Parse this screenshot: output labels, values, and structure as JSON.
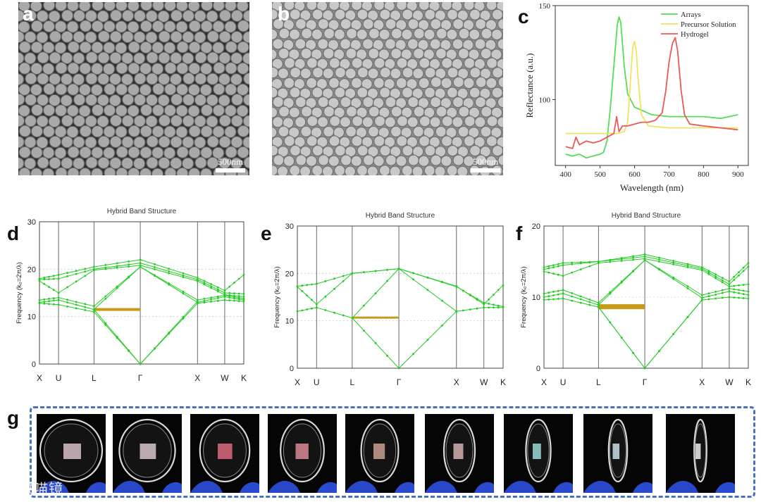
{
  "panels": {
    "a": {
      "letter": "a",
      "scale": "500nm"
    },
    "b": {
      "letter": "b",
      "scale": "500nm"
    },
    "c": {
      "letter": "c"
    },
    "d": {
      "letter": "d"
    },
    "e": {
      "letter": "e"
    },
    "f": {
      "letter": "f"
    },
    "g": {
      "letter": "g"
    }
  },
  "watermark": "大数喵镜",
  "colors": {
    "band": "#22cc22",
    "gap": "#c89a1a",
    "arrays": "#55dd55",
    "precursor": "#f5e060",
    "hydrogel": "#e85a5a",
    "frame": "#4a72b8"
  },
  "chart_data": [
    {
      "type": "line",
      "id": "c",
      "xlabel": "Wavelength (nm)",
      "ylabel": "Reflectance (a.u.)",
      "xlim": [
        370,
        930
      ],
      "ylim": [
        65,
        150
      ],
      "xticks": [
        400,
        500,
        600,
        700,
        800,
        900
      ],
      "yticks": [
        100,
        150
      ],
      "legend_position": "top-right",
      "series": [
        {
          "name": "Arrays",
          "color": "#55dd55",
          "x": [
            400,
            420,
            440,
            460,
            480,
            500,
            510,
            520,
            530,
            540,
            550,
            555,
            560,
            570,
            580,
            600,
            650,
            700,
            750,
            800,
            850,
            900
          ],
          "y": [
            71,
            70,
            71,
            69,
            70,
            71,
            72,
            78,
            96,
            118,
            140,
            144,
            141,
            118,
            103,
            96,
            92,
            91,
            91,
            91,
            90,
            92
          ]
        },
        {
          "name": "Precursor Solution",
          "color": "#f5e060",
          "x": [
            400,
            450,
            500,
            550,
            570,
            580,
            590,
            595,
            600,
            605,
            610,
            620,
            640,
            700,
            800,
            900
          ],
          "y": [
            82,
            82,
            82,
            82,
            83,
            88,
            115,
            128,
            131,
            126,
            112,
            92,
            86,
            85,
            85,
            85
          ]
        },
        {
          "name": "Hydrogel",
          "color": "#e85a5a",
          "x": [
            400,
            420,
            430,
            440,
            460,
            480,
            500,
            520,
            540,
            548,
            555,
            565,
            580,
            600,
            620,
            640,
            660,
            680,
            690,
            700,
            710,
            718,
            725,
            735,
            745,
            760,
            800,
            850,
            900
          ],
          "y": [
            75,
            74,
            80,
            76,
            78,
            77,
            78,
            80,
            82,
            91,
            83,
            86,
            86,
            87,
            88,
            88,
            89,
            93,
            104,
            120,
            130,
            133,
            126,
            105,
            92,
            87,
            86,
            85,
            84
          ]
        }
      ]
    },
    {
      "type": "line",
      "id": "d",
      "title": "Hybrid Band Structure",
      "ylabel": "Frequency (k₀=2π/λ)",
      "ylim": [
        0,
        30
      ],
      "yticks": [
        0,
        10,
        20,
        30
      ],
      "kpoints": [
        {
          "label": "X",
          "pos": 0
        },
        {
          "label": "U",
          "pos": 0.35
        },
        {
          "label": "L",
          "pos": 1.0
        },
        {
          "label": "Γ",
          "pos": 1.85
        },
        {
          "label": "X",
          "pos": 2.9
        },
        {
          "label": "W",
          "pos": 3.4
        },
        {
          "label": "K",
          "pos": 3.75
        }
      ],
      "gap": [
        11.2,
        11.8
      ],
      "series": [
        {
          "x": [
            0,
            0.35,
            1.0,
            1.85,
            2.9,
            3.4,
            3.75
          ],
          "y": [
            18.0,
            18.8,
            20.5,
            22.0,
            18.2,
            15.5,
            18.8
          ]
        },
        {
          "x": [
            0,
            0.35,
            1.0,
            1.85,
            2.9,
            3.4,
            3.75
          ],
          "y": [
            17.8,
            18.0,
            20.0,
            21.3,
            17.8,
            15.0,
            14.8
          ]
        },
        {
          "x": [
            0,
            0.35,
            1.0,
            1.85,
            2.9,
            3.4,
            3.75
          ],
          "y": [
            17.5,
            15.0,
            19.8,
            20.8,
            17.5,
            14.6,
            14.2
          ]
        },
        {
          "x": [
            0,
            0.35,
            1.0,
            1.85,
            2.9,
            3.4,
            3.75
          ],
          "y": [
            13.5,
            14.0,
            12.2,
            20.5,
            13.5,
            14.5,
            13.8
          ]
        },
        {
          "x": [
            0,
            0.35,
            1.0,
            1.85,
            2.9,
            3.4,
            3.75
          ],
          "y": [
            13.0,
            13.5,
            11.5,
            20.5,
            13.0,
            14.2,
            13.5
          ]
        },
        {
          "x": [
            0,
            0.35,
            1.0,
            1.85,
            2.9,
            3.4,
            3.75
          ],
          "y": [
            12.8,
            12.5,
            11.0,
            0,
            12.8,
            13.5,
            13.2
          ]
        },
        {
          "x": [
            1.0,
            1.85,
            2.9
          ],
          "y": [
            11.5,
            0,
            13.2
          ]
        }
      ]
    },
    {
      "type": "line",
      "id": "e",
      "title": "Hybrid Band Structure",
      "ylabel": "Frequency (k₀=2π/λ)",
      "ylim": [
        0,
        30
      ],
      "yticks": [
        0,
        10,
        20,
        30
      ],
      "kpoints": [
        {
          "label": "X",
          "pos": 0
        },
        {
          "label": "U",
          "pos": 0.35
        },
        {
          "label": "L",
          "pos": 1.0
        },
        {
          "label": "Γ",
          "pos": 1.85
        },
        {
          "label": "X",
          "pos": 2.9
        },
        {
          "label": "W",
          "pos": 3.4
        },
        {
          "label": "K",
          "pos": 3.75
        }
      ],
      "gap": [
        10.5,
        10.9
      ],
      "series": [
        {
          "x": [
            0,
            0.35,
            1.0,
            1.85,
            2.9,
            3.4,
            3.75
          ],
          "y": [
            17.3,
            17.8,
            20.0,
            21.0,
            17.3,
            13.5,
            17.5
          ]
        },
        {
          "x": [
            0,
            0.35,
            1.0,
            1.85,
            2.9,
            3.4,
            3.75
          ],
          "y": [
            17.2,
            13.5,
            20.0,
            21.0,
            17.2,
            13.8,
            13.0
          ]
        },
        {
          "x": [
            0,
            0.35,
            1.0,
            1.85,
            2.9,
            3.4,
            3.75
          ],
          "y": [
            12.0,
            12.8,
            10.6,
            21.0,
            12.0,
            12.8,
            12.8
          ]
        },
        {
          "x": [
            1.0,
            1.85,
            2.9
          ],
          "y": [
            10.6,
            0,
            12.0
          ]
        }
      ]
    },
    {
      "type": "line",
      "id": "f",
      "title": "Hybrid Band Structure",
      "ylabel": "Frequency (k₀=2π/λ)",
      "ylim": [
        0,
        20
      ],
      "yticks": [
        0,
        10,
        20
      ],
      "kpoints": [
        {
          "label": "X",
          "pos": 0
        },
        {
          "label": "U",
          "pos": 0.35
        },
        {
          "label": "L",
          "pos": 1.0
        },
        {
          "label": "Γ",
          "pos": 1.85
        },
        {
          "label": "X",
          "pos": 2.9
        },
        {
          "label": "W",
          "pos": 3.4
        },
        {
          "label": "K",
          "pos": 3.75
        }
      ],
      "gap": [
        8.3,
        9.0
      ],
      "series": [
        {
          "x": [
            0,
            0.35,
            1.0,
            1.85,
            2.9,
            3.4,
            3.75
          ],
          "y": [
            14.2,
            14.8,
            15.0,
            16.0,
            14.2,
            12.2,
            14.8
          ]
        },
        {
          "x": [
            0,
            0.35,
            1.0,
            1.85,
            2.9,
            3.4,
            3.75
          ],
          "y": [
            13.9,
            14.5,
            15.0,
            15.7,
            14.0,
            11.8,
            14.3
          ]
        },
        {
          "x": [
            0,
            0.35,
            1.0,
            1.85,
            2.9,
            3.4,
            3.75
          ],
          "y": [
            13.6,
            13.0,
            14.8,
            15.4,
            13.8,
            11.5,
            11.8
          ]
        },
        {
          "x": [
            0,
            0.35,
            1.0,
            1.85,
            2.9,
            3.4,
            3.75
          ],
          "y": [
            10.5,
            11.0,
            9.2,
            15.2,
            10.3,
            11.2,
            10.8
          ]
        },
        {
          "x": [
            0,
            0.35,
            1.0,
            1.85,
            2.9,
            3.4,
            3.75
          ],
          "y": [
            10.0,
            10.5,
            8.9,
            15.2,
            9.9,
            10.8,
            10.3
          ]
        },
        {
          "x": [
            0,
            0.35,
            1.0,
            1.85,
            2.9,
            3.4,
            3.75
          ],
          "y": [
            9.6,
            9.8,
            8.6,
            0,
            9.6,
            10.0,
            9.8
          ]
        },
        {
          "x": [
            1.0,
            1.85,
            2.9
          ],
          "y": [
            8.6,
            0,
            9.6
          ]
        }
      ]
    }
  ]
}
